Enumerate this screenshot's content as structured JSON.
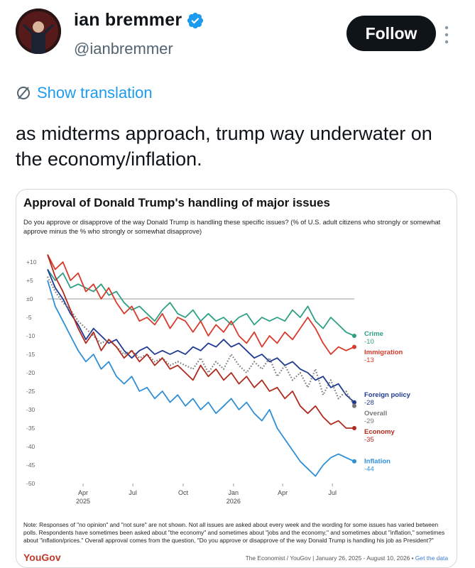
{
  "profile": {
    "name": "ian bremmer",
    "handle": "@ianbremmer",
    "follow_label": "Follow"
  },
  "tweet": {
    "show_translation": "Show translation",
    "text": "as midterms approach, trump way underwater on the economy/inflation."
  },
  "colors": {
    "crime": "#2e9f83",
    "immigration": "#d93a2b",
    "foreign_policy": "#1f3a93",
    "overall": "#777777",
    "economy": "#b02a1e",
    "inflation": "#2f8fd6",
    "follow_bg": "#0f1419",
    "link": "#1d9bf0",
    "brand": "#c0392b"
  },
  "chart_data": {
    "type": "line",
    "title": "Approval of Donald Trump's handling of major issues",
    "subtitle": "Do you approve or disapprove of the way Donald Trump is handling these specific issues? (% of U.S. adult citizens who strongly or somewhat approve minus the % who strongly or somewhat disapprove)",
    "y_ticks": [
      "+10",
      "+5",
      "±0",
      "-5",
      "-10",
      "-15",
      "-20",
      "-25",
      "-30",
      "-35",
      "-40",
      "-45",
      "-50"
    ],
    "ylim": [
      -50,
      10
    ],
    "x_ticks": [
      {
        "label": "Apr",
        "sub": "2025",
        "date": "2025-04-01"
      },
      {
        "label": "Jul",
        "sub": "",
        "date": "2025-07-01"
      },
      {
        "label": "Oct",
        "sub": "",
        "date": "2025-10-01"
      },
      {
        "label": "Jan",
        "sub": "2026",
        "date": "2026-01-01"
      },
      {
        "label": "Apr",
        "sub": "",
        "date": "2026-04-01"
      },
      {
        "label": "Jul",
        "sub": "",
        "date": "2026-07-01"
      }
    ],
    "xlim": [
      "2025-01-26",
      "2026-08-10"
    ],
    "series": [
      {
        "name": "Crime",
        "end_label": "-10",
        "color": "#2e9f83",
        "dash": false,
        "points": [
          [
            "2025-01-26",
            8
          ],
          [
            "2025-02-09",
            5
          ],
          [
            "2025-02-23",
            7
          ],
          [
            "2025-03-09",
            3
          ],
          [
            "2025-03-23",
            4
          ],
          [
            "2025-04-06",
            3
          ],
          [
            "2025-04-20",
            2
          ],
          [
            "2025-05-04",
            4
          ],
          [
            "2025-05-18",
            1
          ],
          [
            "2025-06-01",
            2
          ],
          [
            "2025-06-15",
            -1
          ],
          [
            "2025-06-29",
            -3
          ],
          [
            "2025-07-13",
            -2
          ],
          [
            "2025-07-27",
            -4
          ],
          [
            "2025-08-10",
            -6
          ],
          [
            "2025-08-24",
            -3
          ],
          [
            "2025-09-07",
            -1
          ],
          [
            "2025-09-21",
            -4
          ],
          [
            "2025-10-05",
            -5
          ],
          [
            "2025-10-19",
            -3
          ],
          [
            "2025-11-02",
            -6
          ],
          [
            "2025-11-16",
            -4
          ],
          [
            "2025-11-30",
            -6
          ],
          [
            "2025-12-14",
            -5
          ],
          [
            "2025-12-28",
            -7
          ],
          [
            "2026-01-11",
            -5
          ],
          [
            "2026-01-25",
            -4
          ],
          [
            "2026-02-08",
            -7
          ],
          [
            "2026-02-22",
            -5
          ],
          [
            "2026-03-08",
            -6
          ],
          [
            "2026-03-22",
            -5
          ],
          [
            "2026-04-05",
            -6
          ],
          [
            "2026-04-19",
            -3
          ],
          [
            "2026-05-03",
            -5
          ],
          [
            "2026-05-17",
            -2
          ],
          [
            "2026-05-31",
            -6
          ],
          [
            "2026-06-14",
            -8
          ],
          [
            "2026-06-28",
            -5
          ],
          [
            "2026-07-12",
            -7
          ],
          [
            "2026-07-26",
            -9
          ],
          [
            "2026-08-10",
            -10
          ]
        ]
      },
      {
        "name": "Immigration",
        "end_label": "-13",
        "color": "#d93a2b",
        "dash": false,
        "points": [
          [
            "2025-01-26",
            12
          ],
          [
            "2025-02-09",
            8
          ],
          [
            "2025-02-23",
            10
          ],
          [
            "2025-03-09",
            5
          ],
          [
            "2025-03-23",
            7
          ],
          [
            "2025-04-06",
            2
          ],
          [
            "2025-04-20",
            4
          ],
          [
            "2025-05-04",
            0
          ],
          [
            "2025-05-18",
            3
          ],
          [
            "2025-06-01",
            -1
          ],
          [
            "2025-06-15",
            -4
          ],
          [
            "2025-06-29",
            -2
          ],
          [
            "2025-07-13",
            -6
          ],
          [
            "2025-07-27",
            -5
          ],
          [
            "2025-08-10",
            -7
          ],
          [
            "2025-08-24",
            -4
          ],
          [
            "2025-09-07",
            -8
          ],
          [
            "2025-09-21",
            -5
          ],
          [
            "2025-10-05",
            -6
          ],
          [
            "2025-10-19",
            -9
          ],
          [
            "2025-11-02",
            -6
          ],
          [
            "2025-11-16",
            -10
          ],
          [
            "2025-11-30",
            -7
          ],
          [
            "2025-12-14",
            -9
          ],
          [
            "2025-12-28",
            -6
          ],
          [
            "2026-01-11",
            -10
          ],
          [
            "2026-01-25",
            -12
          ],
          [
            "2026-02-08",
            -9
          ],
          [
            "2026-02-22",
            -13
          ],
          [
            "2026-03-08",
            -10
          ],
          [
            "2026-03-22",
            -12
          ],
          [
            "2026-04-05",
            -9
          ],
          [
            "2026-04-19",
            -11
          ],
          [
            "2026-05-03",
            -8
          ],
          [
            "2026-05-17",
            -5
          ],
          [
            "2026-05-31",
            -8
          ],
          [
            "2026-06-14",
            -12
          ],
          [
            "2026-06-28",
            -15
          ],
          [
            "2026-07-12",
            -13
          ],
          [
            "2026-07-26",
            -14
          ],
          [
            "2026-08-10",
            -13
          ]
        ]
      },
      {
        "name": "Foreign policy",
        "end_label": "-28",
        "color": "#1f3a93",
        "dash": false,
        "points": [
          [
            "2025-01-26",
            8
          ],
          [
            "2025-02-09",
            3
          ],
          [
            "2025-02-23",
            0
          ],
          [
            "2025-03-09",
            -4
          ],
          [
            "2025-03-23",
            -7
          ],
          [
            "2025-04-06",
            -11
          ],
          [
            "2025-04-20",
            -8
          ],
          [
            "2025-05-04",
            -10
          ],
          [
            "2025-05-18",
            -12
          ],
          [
            "2025-06-01",
            -11
          ],
          [
            "2025-06-15",
            -14
          ],
          [
            "2025-06-29",
            -16
          ],
          [
            "2025-07-13",
            -14
          ],
          [
            "2025-07-27",
            -13
          ],
          [
            "2025-08-10",
            -15
          ],
          [
            "2025-08-24",
            -14
          ],
          [
            "2025-09-07",
            -15
          ],
          [
            "2025-09-21",
            -14
          ],
          [
            "2025-10-05",
            -15
          ],
          [
            "2025-10-19",
            -13
          ],
          [
            "2025-11-02",
            -14
          ],
          [
            "2025-11-16",
            -12
          ],
          [
            "2025-11-30",
            -13
          ],
          [
            "2025-12-14",
            -11
          ],
          [
            "2025-12-28",
            -13
          ],
          [
            "2026-01-11",
            -12
          ],
          [
            "2026-01-25",
            -14
          ],
          [
            "2026-02-08",
            -16
          ],
          [
            "2026-02-22",
            -15
          ],
          [
            "2026-03-08",
            -17
          ],
          [
            "2026-03-22",
            -16
          ],
          [
            "2026-04-05",
            -18
          ],
          [
            "2026-04-19",
            -17
          ],
          [
            "2026-05-03",
            -19
          ],
          [
            "2026-05-17",
            -20
          ],
          [
            "2026-05-31",
            -22
          ],
          [
            "2026-06-14",
            -21
          ],
          [
            "2026-06-28",
            -24
          ],
          [
            "2026-07-12",
            -23
          ],
          [
            "2026-07-26",
            -26
          ],
          [
            "2026-08-10",
            -28
          ]
        ]
      },
      {
        "name": "Overall",
        "end_label": "-29",
        "color": "#777777",
        "dash": true,
        "points": [
          [
            "2025-01-26",
            6
          ],
          [
            "2025-02-09",
            2
          ],
          [
            "2025-02-23",
            -1
          ],
          [
            "2025-03-09",
            -3
          ],
          [
            "2025-03-23",
            -6
          ],
          [
            "2025-04-06",
            -8
          ],
          [
            "2025-04-20",
            -10
          ],
          [
            "2025-05-04",
            -12
          ],
          [
            "2025-05-18",
            -11
          ],
          [
            "2025-06-01",
            -13
          ],
          [
            "2025-06-15",
            -15
          ],
          [
            "2025-06-29",
            -14
          ],
          [
            "2025-07-13",
            -16
          ],
          [
            "2025-07-27",
            -15
          ],
          [
            "2025-08-10",
            -17
          ],
          [
            "2025-08-24",
            -16
          ],
          [
            "2025-09-07",
            -18
          ],
          [
            "2025-09-21",
            -17
          ],
          [
            "2025-10-05",
            -18
          ],
          [
            "2025-10-19",
            -19
          ],
          [
            "2025-11-02",
            -16
          ],
          [
            "2025-11-16",
            -20
          ],
          [
            "2025-11-30",
            -17
          ],
          [
            "2025-12-14",
            -19
          ],
          [
            "2025-12-28",
            -15
          ],
          [
            "2026-01-11",
            -18
          ],
          [
            "2026-01-25",
            -20
          ],
          [
            "2026-02-08",
            -17
          ],
          [
            "2026-02-22",
            -19
          ],
          [
            "2026-03-08",
            -16
          ],
          [
            "2026-03-22",
            -21
          ],
          [
            "2026-04-05",
            -18
          ],
          [
            "2026-04-19",
            -22
          ],
          [
            "2026-05-03",
            -20
          ],
          [
            "2026-05-17",
            -24
          ],
          [
            "2026-05-31",
            -19
          ],
          [
            "2026-06-14",
            -26
          ],
          [
            "2026-06-28",
            -22
          ],
          [
            "2026-07-12",
            -27
          ],
          [
            "2026-07-26",
            -25
          ],
          [
            "2026-08-10",
            -29
          ]
        ]
      },
      {
        "name": "Economy",
        "end_label": "-35",
        "color": "#b02a1e",
        "dash": false,
        "points": [
          [
            "2025-01-26",
            12
          ],
          [
            "2025-02-09",
            6
          ],
          [
            "2025-02-23",
            2
          ],
          [
            "2025-03-09",
            -3
          ],
          [
            "2025-03-23",
            -8
          ],
          [
            "2025-04-06",
            -12
          ],
          [
            "2025-04-20",
            -9
          ],
          [
            "2025-05-04",
            -14
          ],
          [
            "2025-05-18",
            -11
          ],
          [
            "2025-06-01",
            -13
          ],
          [
            "2025-06-15",
            -16
          ],
          [
            "2025-06-29",
            -14
          ],
          [
            "2025-07-13",
            -17
          ],
          [
            "2025-07-27",
            -15
          ],
          [
            "2025-08-10",
            -18
          ],
          [
            "2025-08-24",
            -16
          ],
          [
            "2025-09-07",
            -19
          ],
          [
            "2025-09-21",
            -18
          ],
          [
            "2025-10-05",
            -20
          ],
          [
            "2025-10-19",
            -22
          ],
          [
            "2025-11-02",
            -18
          ],
          [
            "2025-11-16",
            -21
          ],
          [
            "2025-11-30",
            -19
          ],
          [
            "2025-12-14",
            -22
          ],
          [
            "2025-12-28",
            -20
          ],
          [
            "2026-01-11",
            -23
          ],
          [
            "2026-01-25",
            -21
          ],
          [
            "2026-02-08",
            -24
          ],
          [
            "2026-02-22",
            -22
          ],
          [
            "2026-03-08",
            -25
          ],
          [
            "2026-03-22",
            -24
          ],
          [
            "2026-04-05",
            -27
          ],
          [
            "2026-04-19",
            -25
          ],
          [
            "2026-05-03",
            -29
          ],
          [
            "2026-05-17",
            -31
          ],
          [
            "2026-05-31",
            -29
          ],
          [
            "2026-06-14",
            -32
          ],
          [
            "2026-06-28",
            -34
          ],
          [
            "2026-07-12",
            -33
          ],
          [
            "2026-07-26",
            -35
          ],
          [
            "2026-08-10",
            -35
          ]
        ]
      },
      {
        "name": "Inflation",
        "end_label": "-44",
        "color": "#2f8fd6",
        "dash": false,
        "points": [
          [
            "2025-01-26",
            5
          ],
          [
            "2025-02-09",
            -2
          ],
          [
            "2025-02-23",
            -6
          ],
          [
            "2025-03-09",
            -10
          ],
          [
            "2025-03-23",
            -14
          ],
          [
            "2025-04-06",
            -17
          ],
          [
            "2025-04-20",
            -15
          ],
          [
            "2025-05-04",
            -19
          ],
          [
            "2025-05-18",
            -17
          ],
          [
            "2025-06-01",
            -21
          ],
          [
            "2025-06-15",
            -23
          ],
          [
            "2025-06-29",
            -21
          ],
          [
            "2025-07-13",
            -25
          ],
          [
            "2025-07-27",
            -24
          ],
          [
            "2025-08-10",
            -27
          ],
          [
            "2025-08-24",
            -25
          ],
          [
            "2025-09-07",
            -28
          ],
          [
            "2025-09-21",
            -26
          ],
          [
            "2025-10-05",
            -29
          ],
          [
            "2025-10-19",
            -27
          ],
          [
            "2025-11-02",
            -30
          ],
          [
            "2025-11-16",
            -28
          ],
          [
            "2025-11-30",
            -31
          ],
          [
            "2025-12-14",
            -29
          ],
          [
            "2025-12-28",
            -27
          ],
          [
            "2026-01-11",
            -30
          ],
          [
            "2026-01-25",
            -28
          ],
          [
            "2026-02-08",
            -31
          ],
          [
            "2026-02-22",
            -33
          ],
          [
            "2026-03-08",
            -30
          ],
          [
            "2026-03-22",
            -35
          ],
          [
            "2026-04-05",
            -38
          ],
          [
            "2026-04-19",
            -41
          ],
          [
            "2026-05-03",
            -44
          ],
          [
            "2026-05-17",
            -46
          ],
          [
            "2026-05-31",
            -48
          ],
          [
            "2026-06-14",
            -45
          ],
          [
            "2026-06-28",
            -43
          ],
          [
            "2026-07-12",
            -42
          ],
          [
            "2026-07-26",
            -43
          ],
          [
            "2026-08-10",
            -44
          ]
        ]
      }
    ],
    "note": "Note: Responses of \"no opinion\" and \"not sure\" are not shown. Not all issues are asked about every week and the wording for some issues has varied between polls. Respondents have sometimes been asked about \"the economy\" and sometimes about \"jobs and the economy,\" and sometimes about \"inflation,\" sometimes about \"inflation/prices.\" Overall approval comes from the question, \"Do you approve or disapprove of the way Donald Trump is handling his job as President?\"",
    "brand": "YouGov",
    "source": "The Economist / YouGov | January 26, 2025 - August 10, 2026 • ",
    "source_link": "Get the data"
  }
}
